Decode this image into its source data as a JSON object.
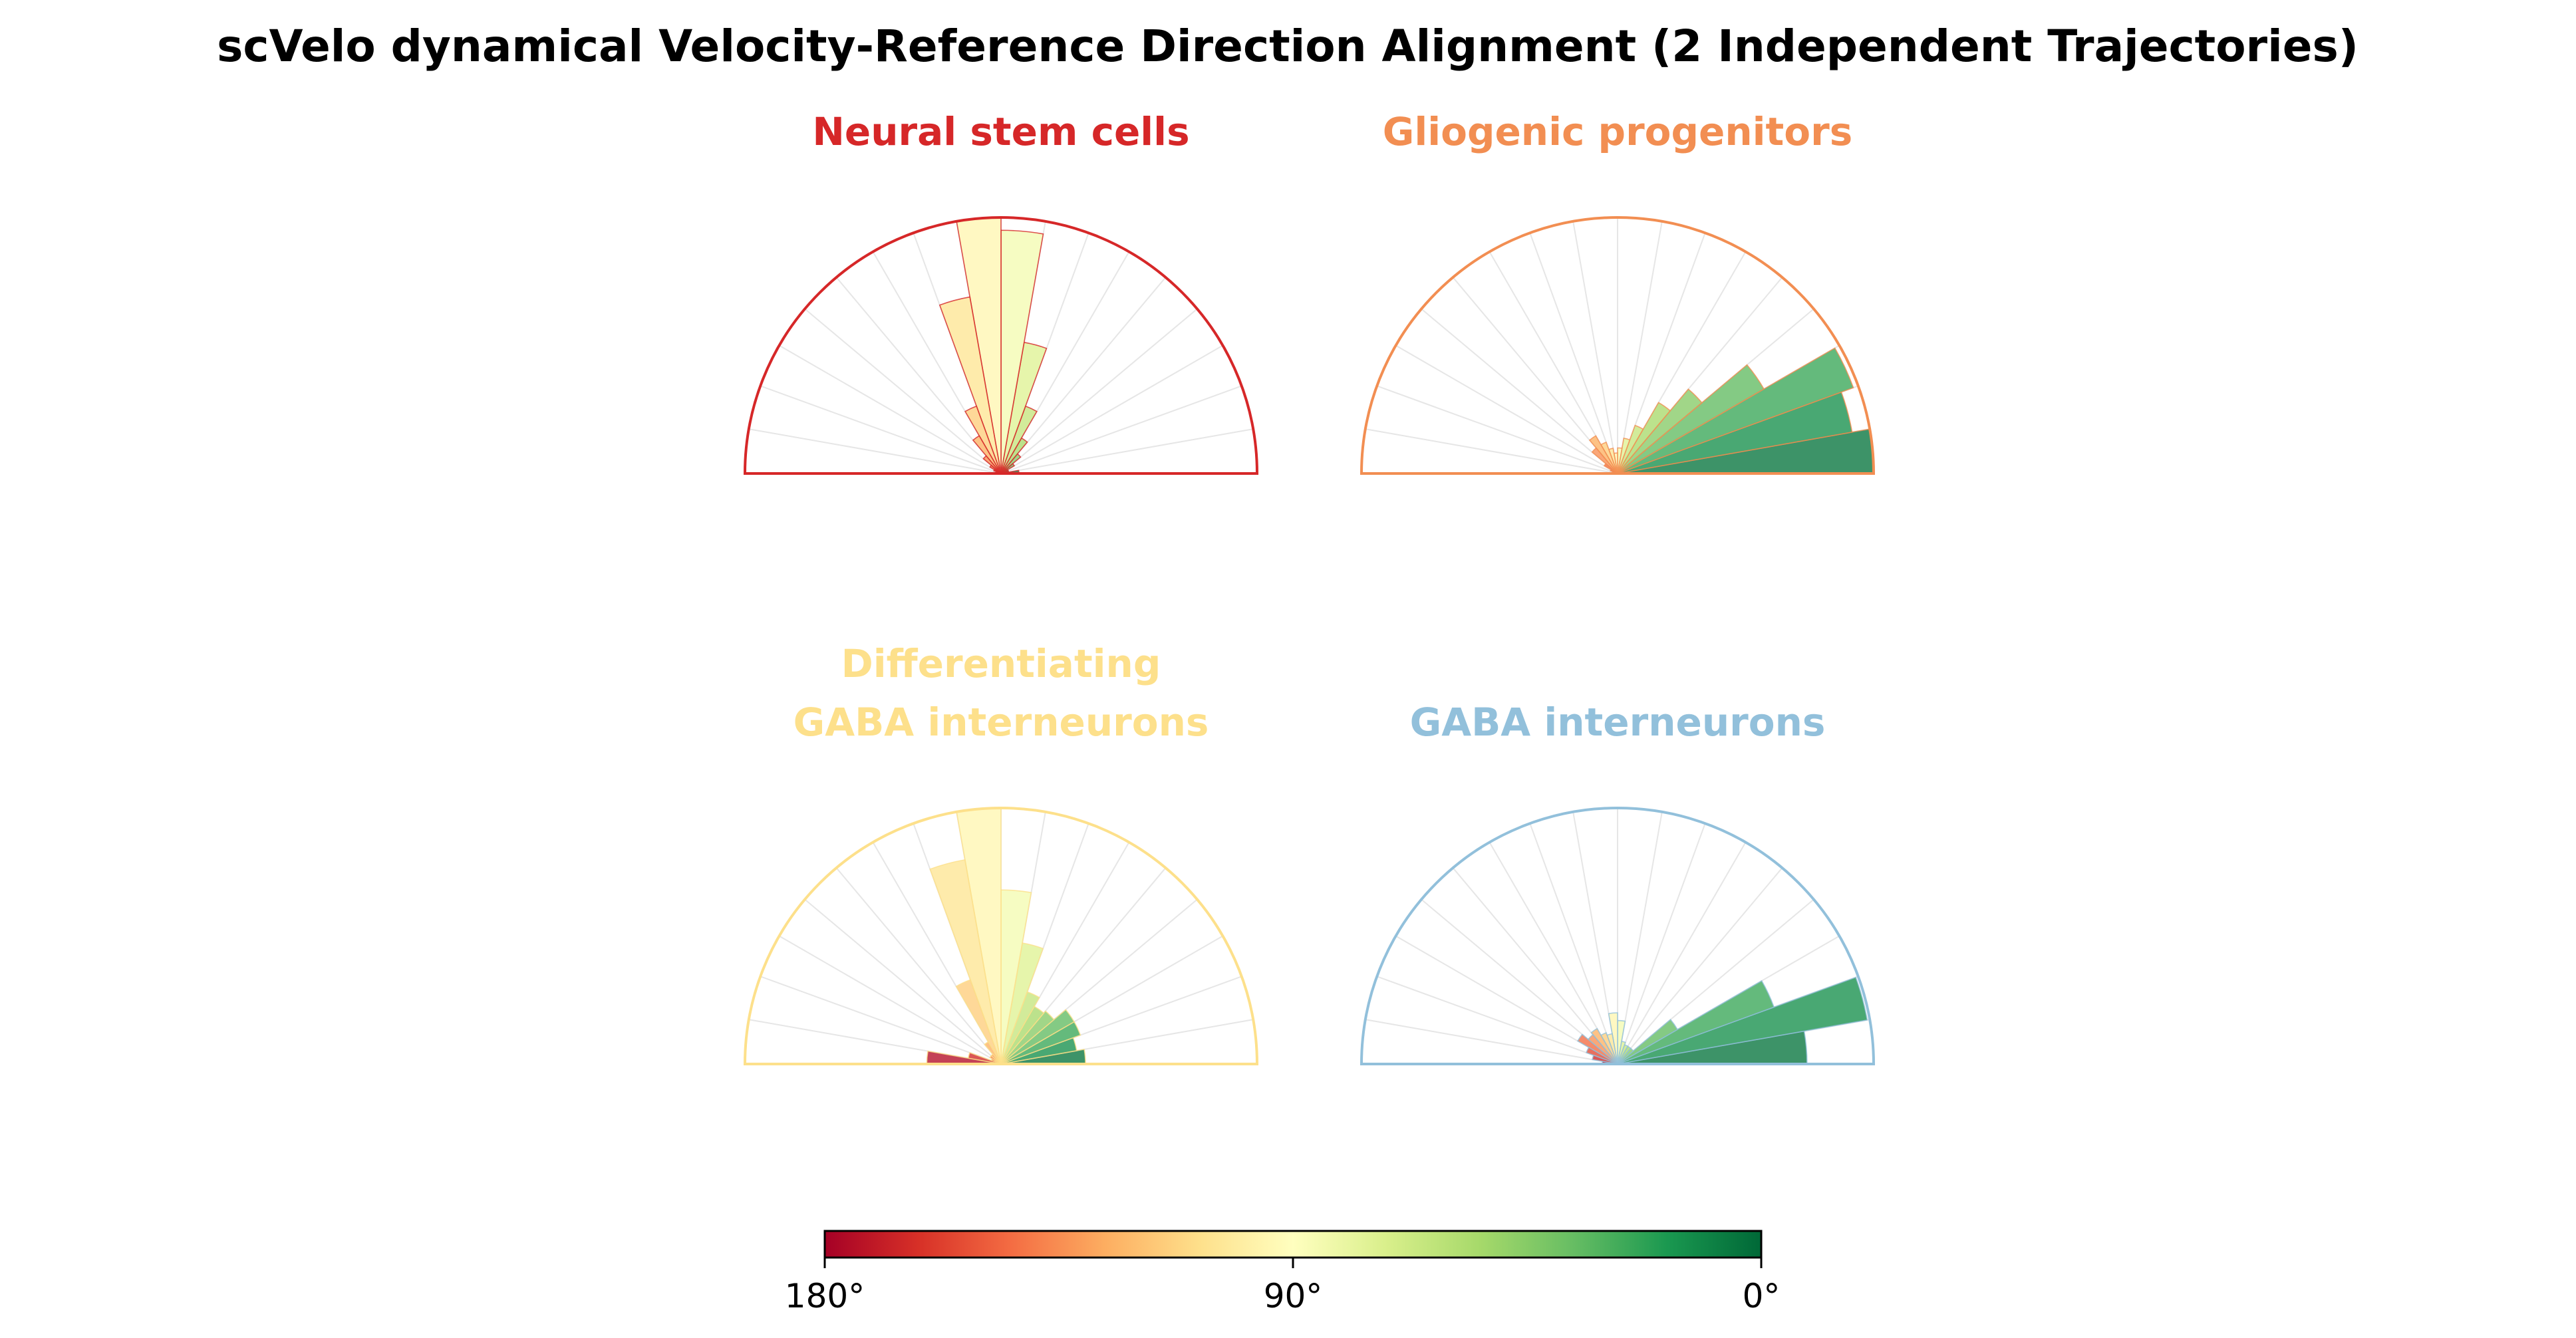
{
  "title": "scVelo dynamical Velocity-Reference Direction Alignment (2 Independent Trajectories)",
  "chart_data": [
    {
      "type": "polar-bar",
      "title_lines": [
        "Neural stem cells"
      ],
      "color": "#d62728",
      "bin_width_deg": 10,
      "bin_centers_deg": [
        5,
        15,
        25,
        35,
        45,
        55,
        65,
        75,
        85,
        95,
        105,
        115,
        125,
        135,
        145,
        155,
        165,
        175
      ],
      "values": [
        0.07,
        0.03,
        0.03,
        0.06,
        0.1,
        0.16,
        0.28,
        0.52,
        0.95,
        1.0,
        0.7,
        0.28,
        0.17,
        0.09,
        0.05,
        0.03,
        0.02,
        0.01
      ]
    },
    {
      "type": "polar-bar",
      "title_lines": [
        "Gliogenic progenitors"
      ],
      "color": "#f28e52",
      "bin_width_deg": 10,
      "bin_centers_deg": [
        5,
        15,
        25,
        35,
        45,
        55,
        65,
        75,
        85,
        95,
        105,
        115,
        125,
        135,
        145,
        155,
        165,
        175
      ],
      "values": [
        1.0,
        0.93,
        0.98,
        0.66,
        0.43,
        0.32,
        0.2,
        0.14,
        0.1,
        0.08,
        0.1,
        0.13,
        0.17,
        0.13,
        0.06,
        0.03,
        0.02,
        0.01
      ]
    },
    {
      "type": "polar-bar",
      "title_lines": [
        "Differentiating",
        "GABA interneurons"
      ],
      "color": "#fde08b",
      "bin_width_deg": 10,
      "bin_centers_deg": [
        5,
        15,
        25,
        35,
        45,
        55,
        65,
        75,
        85,
        95,
        105,
        115,
        125,
        135,
        145,
        155,
        165,
        175
      ],
      "values": [
        0.33,
        0.3,
        0.33,
        0.33,
        0.27,
        0.26,
        0.3,
        0.48,
        0.68,
        1.0,
        0.81,
        0.35,
        0.1,
        0.05,
        0.05,
        0.04,
        0.13,
        0.29
      ]
    },
    {
      "type": "polar-bar",
      "title_lines": [
        "GABA interneurons"
      ],
      "color": "#92c0db",
      "bin_width_deg": 10,
      "bin_centers_deg": [
        5,
        15,
        25,
        35,
        45,
        55,
        65,
        75,
        85,
        95,
        105,
        115,
        125,
        135,
        145,
        155,
        165,
        175
      ],
      "values": [
        0.74,
        0.99,
        0.65,
        0.27,
        0.08,
        0.08,
        0.08,
        0.09,
        0.17,
        0.2,
        0.12,
        0.13,
        0.16,
        0.15,
        0.18,
        0.13,
        0.1,
        0.06
      ]
    }
  ],
  "colorbar": {
    "tick_labels": [
      "180°",
      "90°",
      "0°"
    ],
    "tick_values_deg": [
      180,
      90,
      0
    ],
    "colormap_stops": [
      "#a50026",
      "#d73027",
      "#f46d43",
      "#fdae61",
      "#fee08b",
      "#ffffbf",
      "#d9ef8b",
      "#a6d96a",
      "#66bd63",
      "#1a9850",
      "#006837"
    ]
  }
}
